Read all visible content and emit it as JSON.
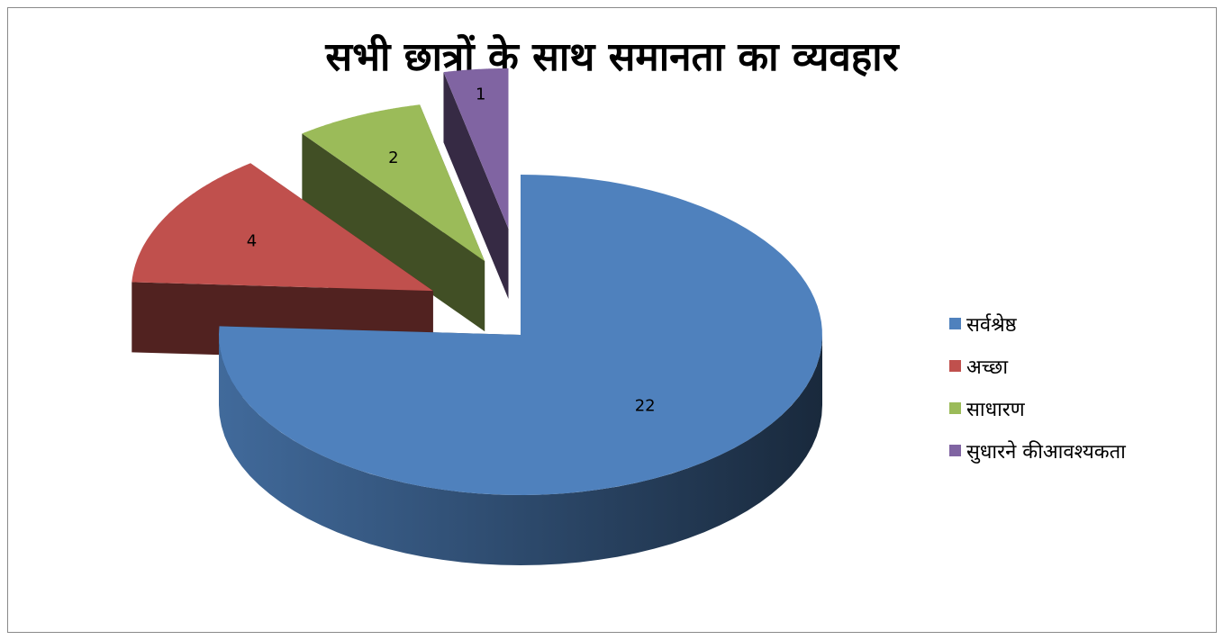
{
  "chart_data": {
    "type": "pie",
    "style": "3d-exploded",
    "title": "सभी छात्रों के साथ समानता का व्यवहार",
    "categories": [
      "सर्वश्रेष्ठ",
      "अच्छा",
      "साधारण",
      "सुधारने कीआवश्यकता"
    ],
    "values": [
      22,
      4,
      2,
      1
    ],
    "colors": [
      "#4f81bd",
      "#c0504d",
      "#9bbb59",
      "#8064a2"
    ],
    "legend_position": "right",
    "data_labels": true
  }
}
